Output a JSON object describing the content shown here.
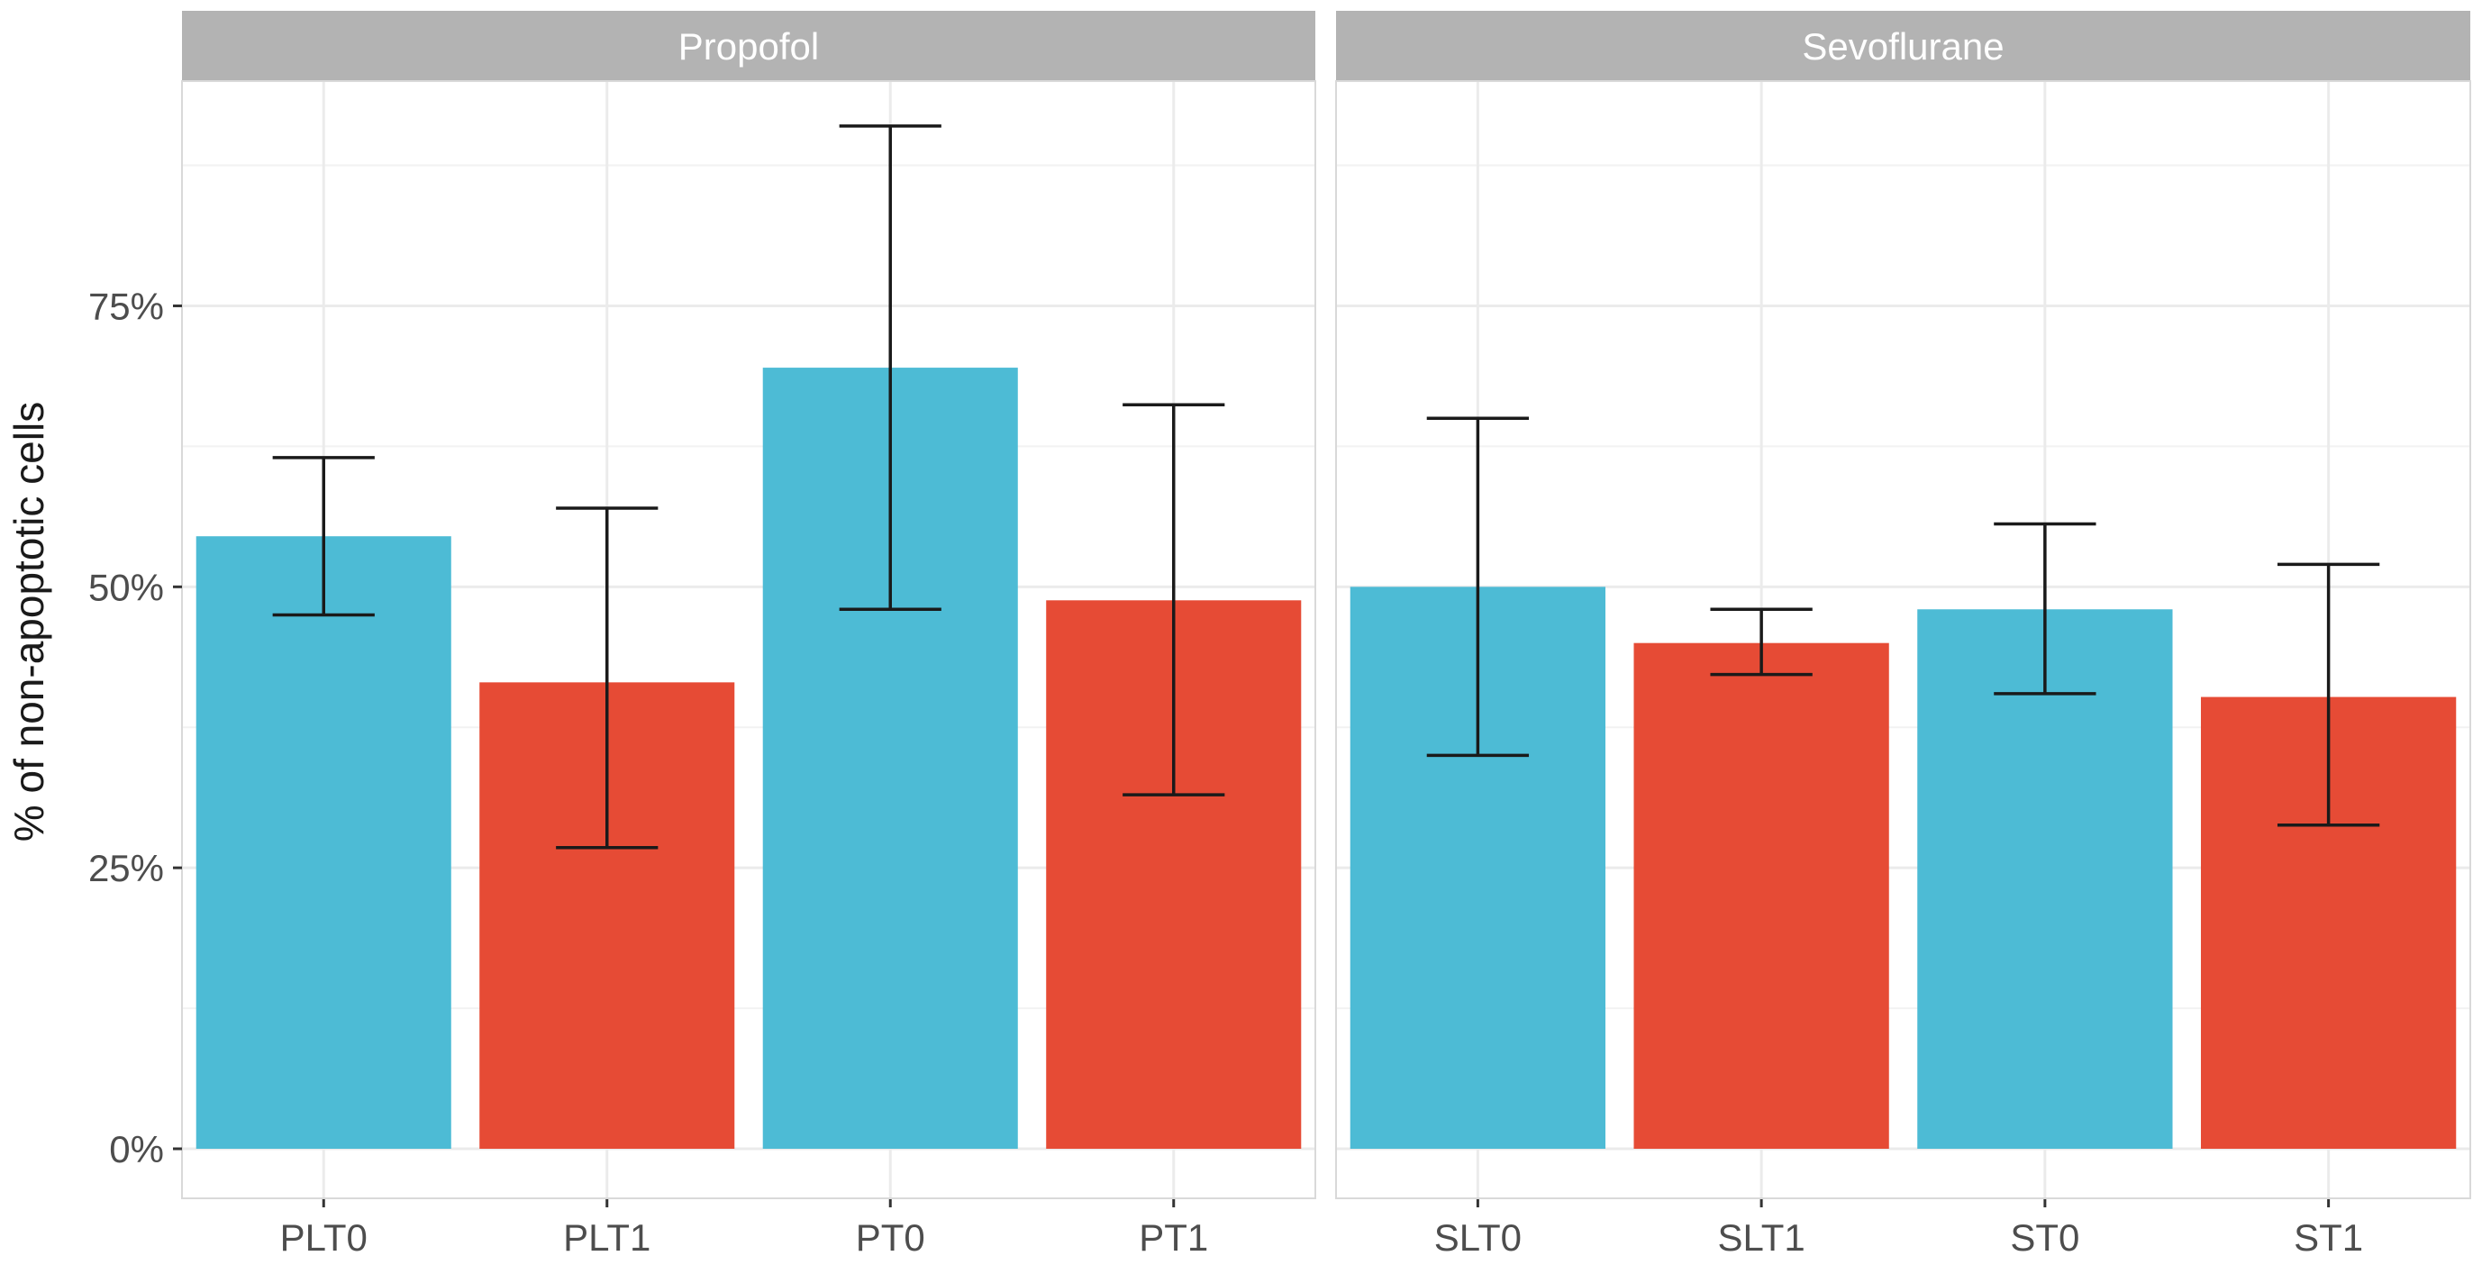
{
  "chart_data": {
    "type": "bar",
    "ylabel": "% of non-apoptotic cells",
    "xlabel": "",
    "ylim": [
      0,
      0.95
    ],
    "yticks": [
      0,
      0.25,
      0.5,
      0.75
    ],
    "ytick_labels": [
      "0%",
      "25%",
      "50%",
      "75%"
    ],
    "grid": true,
    "legend": "none",
    "colors": {
      "T0": "#4DBBD5",
      "T1": "#E64B35",
      "errorbar": "#1a1a1a",
      "strip": "#b3b3b3"
    },
    "panels": [
      {
        "name": "Propofol",
        "categories": [
          "PLT0",
          "PLT1",
          "PT0",
          "PT1"
        ],
        "values": [
          0.545,
          0.415,
          0.695,
          0.488
        ],
        "error_low": [
          0.475,
          0.268,
          0.48,
          0.315
        ],
        "error_high": [
          0.615,
          0.57,
          0.91,
          0.662
        ],
        "groups": [
          "T0",
          "T1",
          "T0",
          "T1"
        ]
      },
      {
        "name": "Sevoflurane",
        "categories": [
          "SLT0",
          "SLT1",
          "ST0",
          "ST1"
        ],
        "values": [
          0.5,
          0.45,
          0.48,
          0.402
        ],
        "error_low": [
          0.35,
          0.422,
          0.405,
          0.288
        ],
        "error_high": [
          0.65,
          0.48,
          0.556,
          0.52
        ],
        "groups": [
          "T0",
          "T1",
          "T0",
          "T1"
        ]
      }
    ]
  }
}
